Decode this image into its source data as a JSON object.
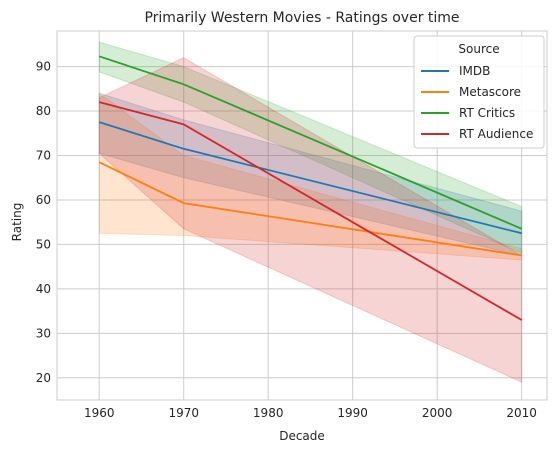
{
  "chart_data": {
    "type": "line",
    "title": "Primarily Western Movies - Ratings over time",
    "xlabel": "Decade",
    "ylabel": "Rating",
    "x": [
      1960,
      1970,
      2010
    ],
    "xticks": [
      1960,
      1970,
      1980,
      1990,
      2000,
      2010
    ],
    "yticks": [
      20,
      30,
      40,
      50,
      60,
      70,
      80,
      90
    ],
    "xlim": [
      1955,
      2013
    ],
    "ylim": [
      15,
      98
    ],
    "grid": true,
    "legend": {
      "title": "Source",
      "placement": "top-right"
    },
    "series": [
      {
        "name": "IMDB",
        "color": "#1f77b4",
        "values": [
          77.5,
          71.5,
          52.5
        ],
        "ci_low": [
          70.5,
          65.0,
          47.5
        ],
        "ci_high": [
          84.0,
          78.0,
          57.5
        ]
      },
      {
        "name": "Metascore",
        "color": "#ff7f0e",
        "values": [
          68.5,
          59.3,
          47.5
        ],
        "ci_low": [
          52.5,
          52.0,
          46.5
        ],
        "ci_high": [
          84.0,
          70.0,
          49.0
        ]
      },
      {
        "name": "RT Critics",
        "color": "#2ca02c",
        "values": [
          92.3,
          86.0,
          53.5
        ],
        "ci_low": [
          88.8,
          82.0,
          48.0
        ],
        "ci_high": [
          95.5,
          90.0,
          58.5
        ]
      },
      {
        "name": "RT Audience",
        "color": "#d62728",
        "values": [
          82.0,
          77.0,
          33.0
        ],
        "ci_low": [
          70.5,
          53.5,
          19.0
        ],
        "ci_high": [
          83.0,
          92.0,
          47.5
        ]
      }
    ]
  }
}
